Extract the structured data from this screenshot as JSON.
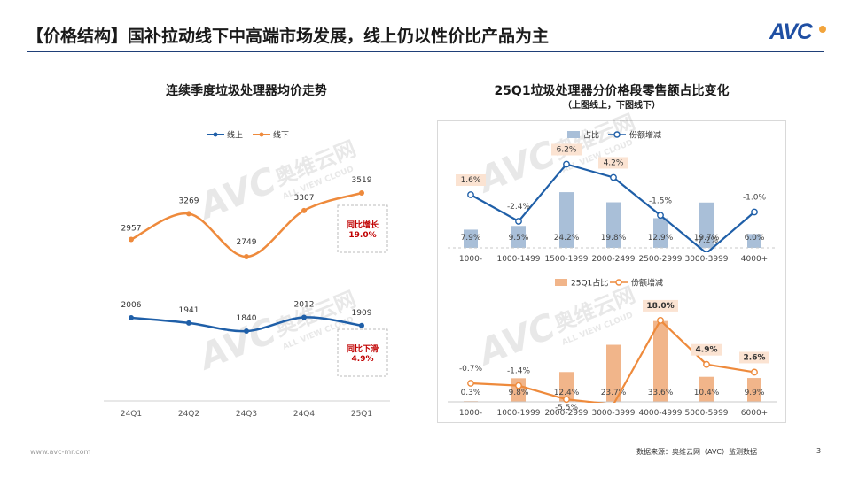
{
  "header": {
    "title": "【价格结构】国补拉动线下中高端市场发展，线上仍以性价比产品为主",
    "logo_text": "AVC"
  },
  "colors": {
    "online": "#1f5fa8",
    "offline": "#ee8a3c",
    "share_online_bar": "#a9bfd8",
    "share_offline_bar": "#f1b58a",
    "highlight_red": "#c00000",
    "label_box": "#fbe3d2"
  },
  "watermark": {
    "text_cn": "奥维云网",
    "text_en": "ALL VIEW CLOUD",
    "logo": "AVC"
  },
  "chart_data": [
    {
      "type": "line",
      "title": "连续季度垃圾处理器均价走势",
      "categories": [
        "24Q1",
        "24Q2",
        "24Q3",
        "24Q4",
        "25Q1"
      ],
      "series": [
        {
          "name": "线上",
          "values": [
            2006,
            1941,
            1840,
            2012,
            1909
          ]
        },
        {
          "name": "线下",
          "values": [
            2957,
            3269,
            2749,
            3307,
            3519
          ]
        }
      ],
      "legend": "top",
      "annotations": [
        {
          "series": "线下",
          "text_lines": [
            "同比增长",
            "19.0%"
          ]
        },
        {
          "series": "线上",
          "text_lines": [
            "同比下滑",
            "4.9%"
          ]
        }
      ]
    },
    {
      "type": "bar+line",
      "title": "25Q1垃圾处理器分价格段零售额占比变化",
      "subtitle": "（上图线上，下图线下）",
      "panels": [
        {
          "channel": "online",
          "categories": [
            "1000-",
            "1000-1499",
            "1500-1999",
            "2000-2499",
            "2500-2999",
            "3000-3999",
            "4000+"
          ],
          "legend": [
            "占比",
            "份额增减"
          ],
          "share_labels": [
            "7.9%",
            "9.5%",
            "24.2%",
            "19.8%",
            "12.9%",
            "19.7%",
            "6.0%"
          ],
          "share_values": [
            7.9,
            9.5,
            24.2,
            19.8,
            12.9,
            19.7,
            6.0
          ],
          "change_labels": [
            "1.6%",
            "-2.4%",
            "6.2%",
            "4.2%",
            "-1.5%",
            "-7.2%",
            "-1.0%"
          ],
          "change_values": [
            1.6,
            -2.4,
            6.2,
            4.2,
            -1.5,
            -7.2,
            -1.0
          ],
          "highlighted": [
            true,
            false,
            true,
            true,
            false,
            false,
            false
          ]
        },
        {
          "channel": "offline",
          "categories": [
            "1000-",
            "1000-1999",
            "2000-2999",
            "3000-3999",
            "4000-4999",
            "5000-5999",
            "6000+"
          ],
          "legend": [
            "25Q1占比",
            "份额增减"
          ],
          "share_labels": [
            "0.3%",
            "9.8%",
            "12.4%",
            "23.7%",
            "33.6%",
            "10.4%",
            "9.9%"
          ],
          "share_values": [
            0.3,
            9.8,
            12.4,
            23.7,
            33.6,
            10.4,
            9.9
          ],
          "change_labels": [
            "-0.7%",
            "-1.4%",
            "-5.5%",
            "",
            "18.0%",
            "4.9%",
            "2.6%"
          ],
          "change_values": [
            -0.7,
            -1.4,
            -5.5,
            -7.0,
            18.0,
            4.9,
            2.6
          ],
          "highlighted": [
            false,
            false,
            false,
            false,
            true,
            true,
            true
          ]
        }
      ]
    }
  ],
  "footer": {
    "website": "www.avc-mr.com",
    "source": "数据来源：奥维云网（AVC）监测数据",
    "page": "3"
  }
}
